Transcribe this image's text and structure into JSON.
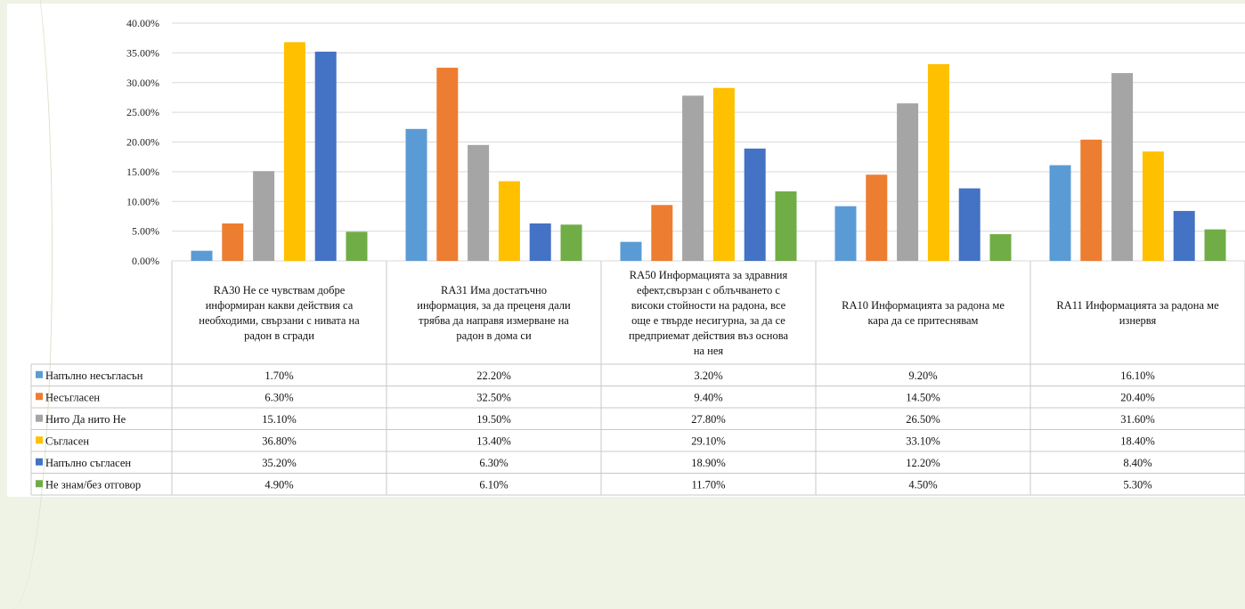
{
  "chart_data": {
    "type": "bar",
    "categories": [
      "RA30 Не се чувствам добре информиран какви действия са необходими, свързани с нивата на радон в сгради",
      "RA31 Има достатъчно информация, за да преценя дали трябва да направя измерване на радон в дома си",
      "RA50 Информацията за здравния ефект,свързан с облъчването с високи стойности на радона, все още е твърде несигурна, за да се предприемат действия въз основа на нея",
      "RA10 Информацията за радона ме кара да се притеснявам",
      "RA11 Информацията за радона ме изнервя"
    ],
    "category_lines": [
      [
        "RA30 Не се чувствам добре",
        "информиран какви действия са",
        "необходими, свързани с нивата на",
        "радон в сгради"
      ],
      [
        "RA31 Има достатъчно",
        "информация, за да преценя дали",
        "трябва да направя измерване на",
        "радон в дома си"
      ],
      [
        "RA50 Информацията за здравния",
        "ефект,свързан с облъчването с",
        "високи стойности на радона, все",
        "още е твърде несигурна, за да се",
        "предприемат действия въз основа",
        "на нея"
      ],
      [
        "RA10 Информацията за радона ме",
        "кара да се притеснявам"
      ],
      [
        "RA11 Информацията за радона ме",
        "изнервя"
      ]
    ],
    "series": [
      {
        "name": "Напълно несъгласън",
        "color": "#5b9bd5",
        "values": [
          1.7,
          22.2,
          3.2,
          9.2,
          16.1
        ],
        "labels": [
          "1.70%",
          "22.20%",
          "3.20%",
          "9.20%",
          "16.10%"
        ]
      },
      {
        "name": "Несъгласен",
        "color": "#ed7d31",
        "values": [
          6.3,
          32.5,
          9.4,
          14.5,
          20.4
        ],
        "labels": [
          "6.30%",
          "32.50%",
          "9.40%",
          "14.50%",
          "20.40%"
        ]
      },
      {
        "name": "Нито Да нито Не",
        "color": "#a5a5a5",
        "values": [
          15.1,
          19.5,
          27.8,
          26.5,
          31.6
        ],
        "labels": [
          "15.10%",
          "19.50%",
          "27.80%",
          "26.50%",
          "31.60%"
        ]
      },
      {
        "name": "Съгласен",
        "color": "#ffc000",
        "values": [
          36.8,
          13.4,
          29.1,
          33.1,
          18.4
        ],
        "labels": [
          "36.80%",
          "13.40%",
          "29.10%",
          "33.10%",
          "18.40%"
        ]
      },
      {
        "name": "Напълно съгласен",
        "color": "#4472c4",
        "values": [
          35.2,
          6.3,
          18.9,
          12.2,
          8.4
        ],
        "labels": [
          "35.20%",
          "6.30%",
          "18.90%",
          "12.20%",
          "8.40%"
        ]
      },
      {
        "name": "Не знам/без отговор",
        "color": "#70ad47",
        "values": [
          4.9,
          6.1,
          11.7,
          4.5,
          5.3
        ],
        "labels": [
          "4.90%",
          "6.10%",
          "11.70%",
          "4.50%",
          "5.30%"
        ]
      }
    ],
    "y_ticks": [
      "0.00%",
      "5.00%",
      "10.00%",
      "15.00%",
      "20.00%",
      "25.00%",
      "30.00%",
      "35.00%",
      "40.00%"
    ],
    "ylim": [
      0,
      40
    ],
    "grid": true,
    "legend": "data table"
  }
}
